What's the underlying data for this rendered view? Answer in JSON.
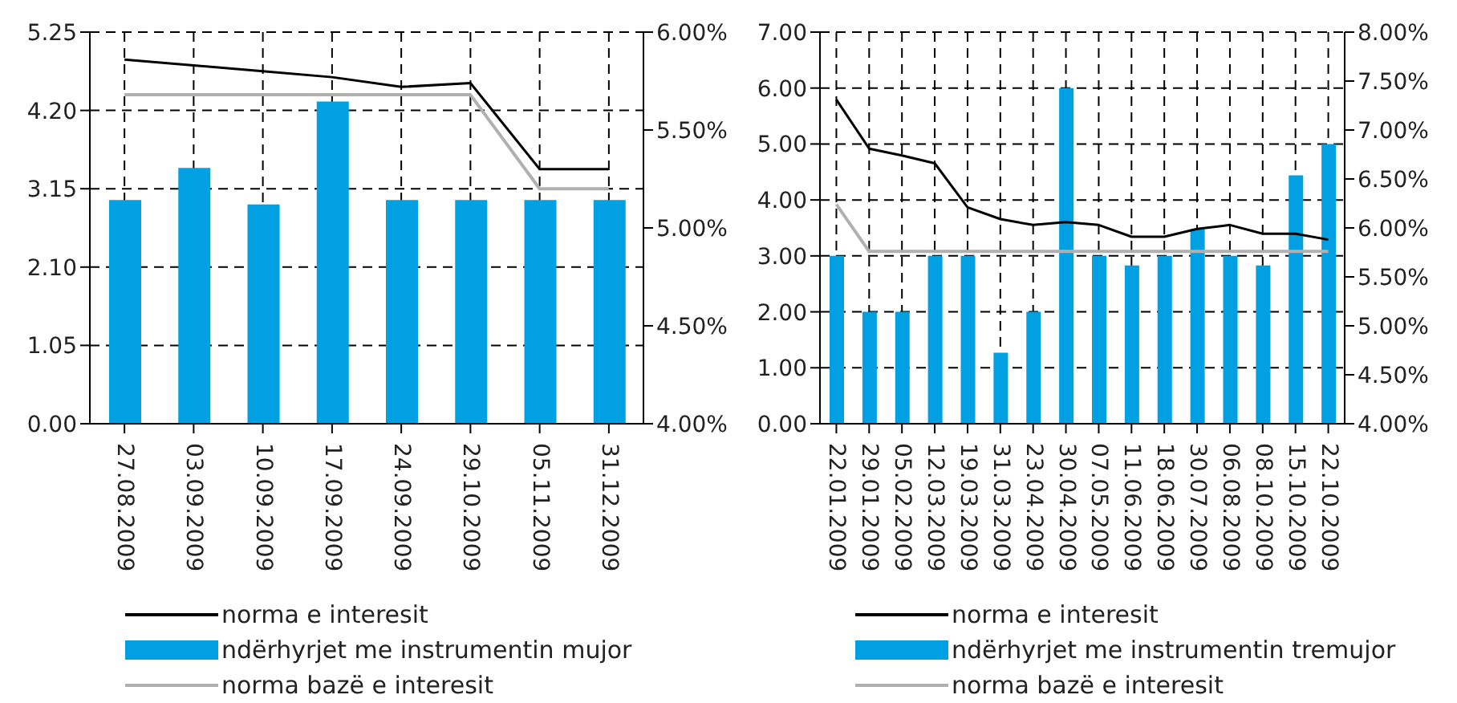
{
  "chart_data": [
    {
      "type": "bar",
      "categories": [
        "27.08.2009",
        "03.09.2009",
        "10.09.2009",
        "17.09.2009",
        "24.09.2009",
        "29.10.2009",
        "05.11.2009",
        "31.12.2009"
      ],
      "series": [
        {
          "name": "norma e interesit",
          "type": "line",
          "axis": "y2",
          "color": "#000000",
          "values": [
            5.86,
            5.83,
            5.8,
            5.77,
            5.72,
            5.74,
            5.3,
            5.3
          ]
        },
        {
          "name": "ndërhyrjet me instrumentin mujor",
          "color": "#00a0e3",
          "values": [
            3.0,
            3.43,
            2.94,
            4.32,
            3.0,
            3.0,
            3.0,
            3.0
          ]
        },
        {
          "name": "norma bazë e interesit",
          "type": "line",
          "axis": "y2",
          "color": "#b0b0b0",
          "values": [
            5.68,
            5.68,
            5.68,
            5.68,
            5.68,
            5.68,
            5.2,
            5.2
          ]
        }
      ],
      "ylim": [
        0,
        5.25
      ],
      "yticks": [
        {
          "value": 0,
          "label": "0.00"
        },
        1.05,
        {
          "value": 2.1,
          "label": "2.10"
        },
        3.15,
        {
          "value": 4.2,
          "label": "4.20"
        },
        5.25
      ],
      "y2lim": [
        4,
        6
      ],
      "y2ticks": [
        {
          "value": 4,
          "label": "4.00%"
        },
        {
          "value": 4.5,
          "label": "4.50%"
        },
        {
          "value": 5,
          "label": "5.00%"
        },
        {
          "value": 5.5,
          "label": "5.50%"
        },
        {
          "value": 6,
          "label": "6.00%"
        }
      ],
      "grid": true,
      "legend": "bottom",
      "line_style": "solid"
    },
    {
      "type": "bar",
      "categories": [
        "22.01.2009",
        "29.01.2009",
        "05.02.2009",
        "12.03.2009",
        "19.03.2009",
        "31.03.2009",
        "23.04.2009",
        "30.04.2009",
        "07.05.2009",
        "11.06.2009",
        "18.06.2009",
        "30.07.2009",
        "06.08.2009",
        "08.10.2009",
        "15.10.2009",
        "22.10.2009"
      ],
      "series": [
        {
          "name": "norma e interesit",
          "type": "line",
          "axis": "y2",
          "color": "#000000",
          "values": [
            7.31,
            6.81,
            6.74,
            6.66,
            6.21,
            6.09,
            6.03,
            6.06,
            6.03,
            5.91,
            5.91,
            5.99,
            6.03,
            5.94,
            5.94,
            5.88
          ]
        },
        {
          "name": "ndërhyrjet me instrumentin tremujor",
          "color": "#00a0e3",
          "values": [
            3.0,
            2.0,
            2.0,
            3.0,
            3.0,
            1.27,
            2.0,
            6.0,
            3.0,
            2.83,
            3.0,
            3.48,
            3.0,
            2.83,
            4.44,
            5.0
          ]
        },
        {
          "name": "norma bazë e interesit",
          "type": "line",
          "axis": "y2",
          "color": "#b0b0b0",
          "values": [
            6.24,
            5.76,
            5.76,
            5.76,
            5.76,
            5.76,
            5.76,
            5.76,
            5.76,
            5.76,
            5.76,
            5.76,
            5.76,
            5.76,
            5.76,
            5.76
          ]
        }
      ],
      "ylim": [
        0,
        7
      ],
      "yticks": [
        {
          "value": 0,
          "label": "0.00"
        },
        {
          "value": 1,
          "label": "1.00"
        },
        {
          "value": 2,
          "label": "2.00"
        },
        {
          "value": 3,
          "label": "3.00"
        },
        {
          "value": 4,
          "label": "4.00"
        },
        {
          "value": 5,
          "label": "5.00"
        },
        {
          "value": 6,
          "label": "6.00"
        },
        {
          "value": 7,
          "label": "7.00"
        }
      ],
      "y2lim": [
        4,
        8
      ],
      "y2ticks": [
        {
          "value": 4,
          "label": "4.00%"
        },
        {
          "value": 4.5,
          "label": "4.50%"
        },
        {
          "value": 5,
          "label": "5.00%"
        },
        {
          "value": 5.5,
          "label": "5.50%"
        },
        {
          "value": 6,
          "label": "6.00%"
        },
        {
          "value": 6.5,
          "label": "6.50%"
        },
        {
          "value": 7,
          "label": "7.00%"
        },
        {
          "value": 7.5,
          "label": "7.50%"
        },
        {
          "value": 8,
          "label": "8.00%"
        }
      ],
      "grid": true,
      "legend": "bottom",
      "line_style": "solid"
    }
  ]
}
